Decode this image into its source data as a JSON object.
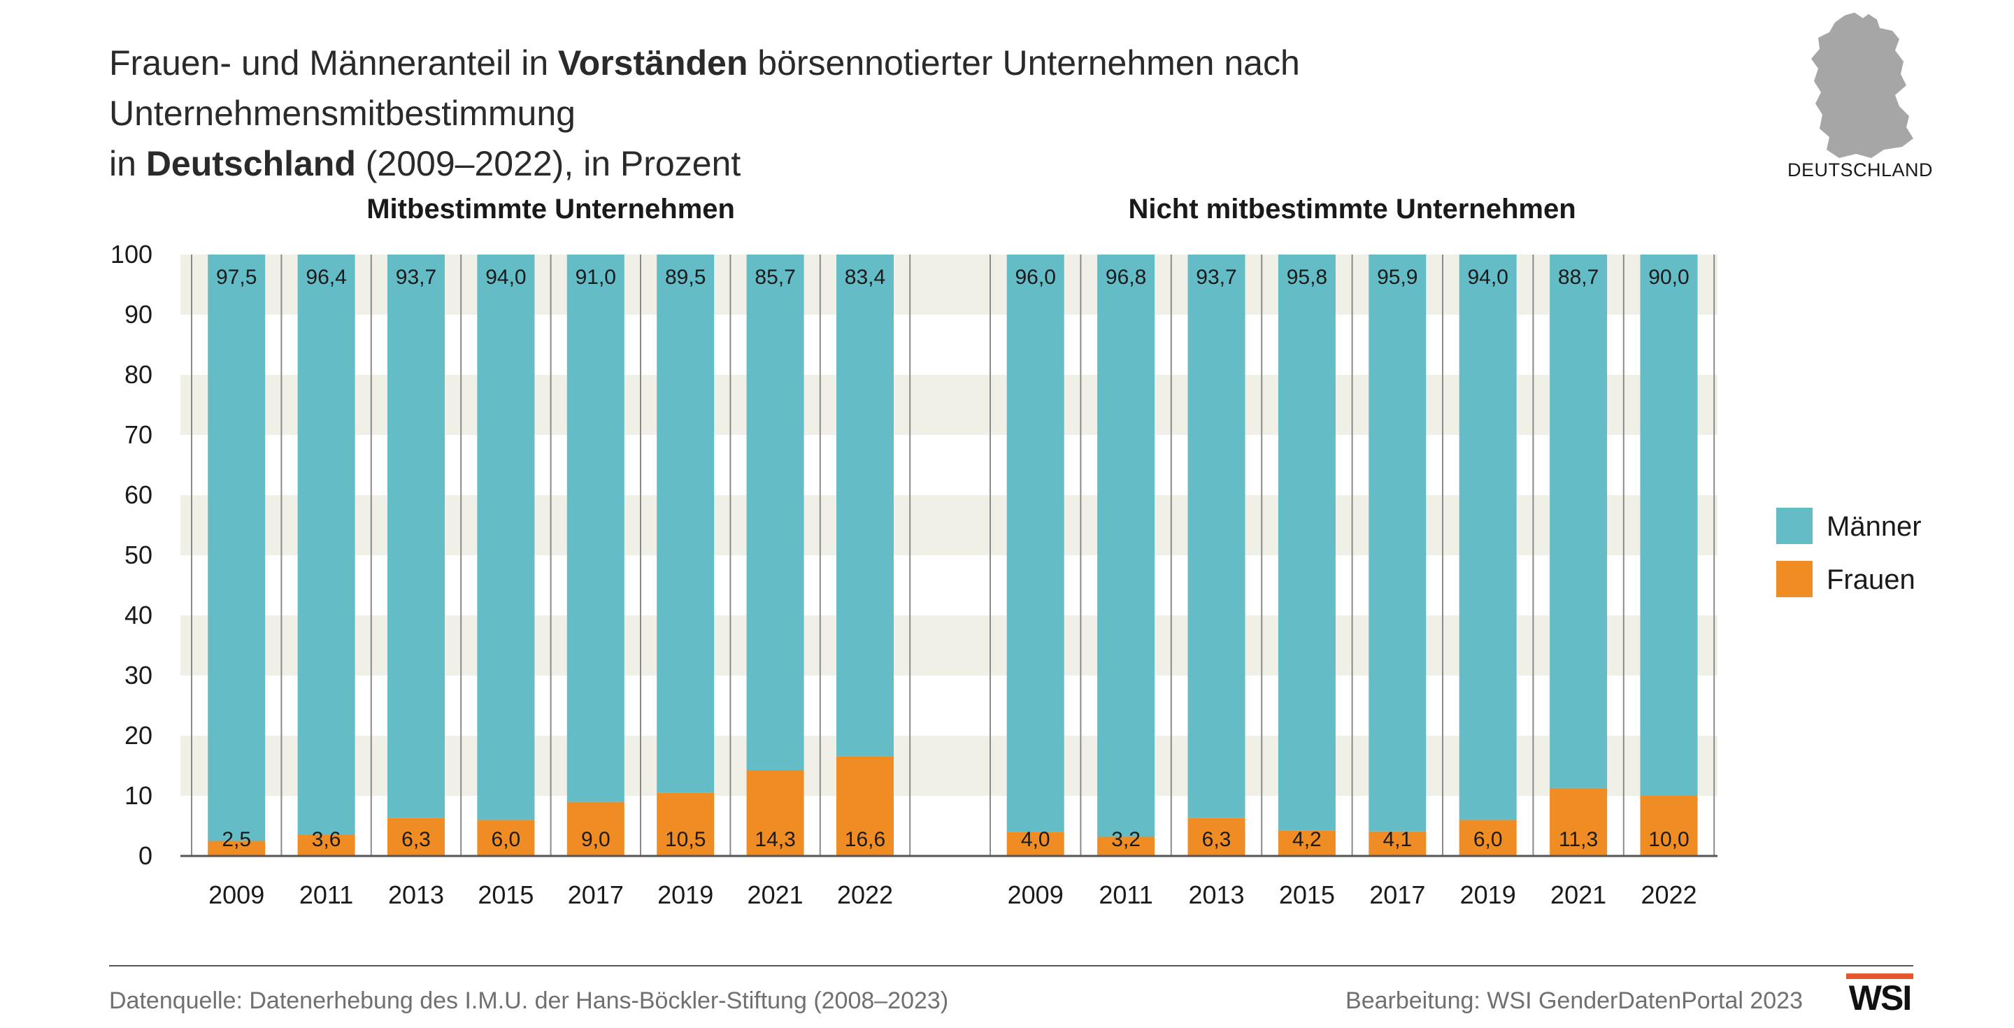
{
  "title": {
    "line1_a": "Frauen- und Männeranteil in ",
    "line1_b": "Vorständen",
    "line1_c": " börsennotierter Unternehmen nach Unternehmensmitbestimmung",
    "line2_a": "in ",
    "line2_b": "Deutschland",
    "line2_c": " (2009–2022), in Prozent"
  },
  "map_label": "DEUTSCHLAND",
  "colors": {
    "maenner": "#64bcc6",
    "frauen": "#f08c24",
    "stripe": "#f1f0e6",
    "map": "#a6a6a6"
  },
  "chart_data": {
    "type": "bar",
    "stacked": true,
    "ylim": [
      0,
      100
    ],
    "yticks": [
      "0",
      "10",
      "20",
      "30",
      "40",
      "50",
      "60",
      "70",
      "80",
      "90",
      "100"
    ],
    "legend": {
      "placement": "right",
      "items": [
        {
          "name": "Männer",
          "color": "#64bcc6"
        },
        {
          "name": "Frauen",
          "color": "#f08c24"
        }
      ]
    },
    "panels": [
      {
        "title": "Mitbestimmte Unternehmen",
        "categories": [
          "2009",
          "2011",
          "2013",
          "2015",
          "2017",
          "2019",
          "2021",
          "2022"
        ],
        "series": [
          {
            "name": "Frauen",
            "values": [
              2.5,
              3.6,
              6.3,
              6.0,
              9.0,
              10.5,
              14.3,
              16.6
            ],
            "labels": [
              "2,5",
              "3,6",
              "6,3",
              "6,0",
              "9,0",
              "10,5",
              "14,3",
              "16,6"
            ]
          },
          {
            "name": "Männer",
            "values": [
              97.5,
              96.4,
              93.7,
              94.0,
              91.0,
              89.5,
              85.7,
              83.4
            ],
            "labels": [
              "97,5",
              "96,4",
              "93,7",
              "94,0",
              "91,0",
              "89,5",
              "85,7",
              "83,4"
            ]
          }
        ]
      },
      {
        "title": "Nicht mitbestimmte Unternehmen",
        "categories": [
          "2009",
          "2011",
          "2013",
          "2015",
          "2017",
          "2019",
          "2021",
          "2022"
        ],
        "series": [
          {
            "name": "Frauen",
            "values": [
              4.0,
              3.2,
              6.3,
              4.2,
              4.1,
              6.0,
              11.3,
              10.0
            ],
            "labels": [
              "4,0",
              "3,2",
              "6,3",
              "4,2",
              "4,1",
              "6,0",
              "11,3",
              "10,0"
            ]
          },
          {
            "name": "Männer",
            "values": [
              96.0,
              96.8,
              93.7,
              95.8,
              95.9,
              94.0,
              88.7,
              90.0
            ],
            "labels": [
              "96,0",
              "96,8",
              "93,7",
              "95,8",
              "95,9",
              "94,0",
              "88,7",
              "90,0"
            ]
          }
        ]
      }
    ]
  },
  "footer": {
    "source": "Datenquelle: Datenerhebung des I.M.U. der Hans-Böckler-Stiftung (2008–2023)",
    "credit": "Bearbeitung: WSI GenderDatenPortal 2023",
    "logo": "WSI"
  }
}
